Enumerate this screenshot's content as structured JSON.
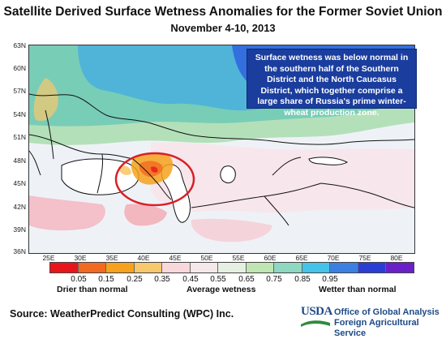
{
  "title": "Satellite Derived Surface Wetness Anomalies for the Former Soviet Union",
  "subtitle": "November 4-10, 2013",
  "map": {
    "lat_labels": [
      "63N",
      "60N",
      "57N",
      "54N",
      "51N",
      "48N",
      "45N",
      "42N",
      "39N",
      "36N"
    ],
    "lon_labels": [
      "25E",
      "30E",
      "35E",
      "40E",
      "45E",
      "50E",
      "55E",
      "60E",
      "65E",
      "70E",
      "75E",
      "80E"
    ],
    "callout": "Surface wetness was below normal in the southern half of the Southern District and the North Caucasus District, which together comprise a large share of Russia's prime winter-wheat production zone.",
    "highlight": "red-ellipse"
  },
  "legend": {
    "colors": [
      "#e8161b",
      "#f26a22",
      "#f6a21c",
      "#f8c86c",
      "#f9d8dc",
      "#f5e8ea",
      "#e6f0e2",
      "#bfe6b2",
      "#8ed7c1",
      "#45c3e8",
      "#3b7fe3",
      "#2a3ed6",
      "#6a1fc9"
    ],
    "ticks": [
      "0.05",
      "0.15",
      "0.25",
      "0.35",
      "0.45",
      "0.55",
      "0.65",
      "0.75",
      "0.85",
      "0.95"
    ],
    "left_caption": "Drier than normal",
    "center_caption": "Average wetness",
    "right_caption": "Wetter than normal"
  },
  "footer": {
    "source": "Source: WeatherPredict Consulting (WPC) Inc.",
    "logo_text": "USDA",
    "agency_line1": "Office of Global Analysis",
    "agency_line2": "Foreign Agricultural Service"
  }
}
